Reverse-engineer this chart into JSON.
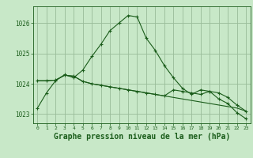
{
  "bg_color": "#c8e8c8",
  "grid_color": "#99bb99",
  "line_color": "#1a5c1a",
  "marker_color": "#1a5c1a",
  "xlabel": "Graphe pression niveau de la mer (hPa)",
  "xlabel_fontsize": 7,
  "yticks": [
    1023,
    1024,
    1025,
    1026
  ],
  "ytick_labels": [
    "1023",
    "1024",
    "1025",
    "1026"
  ],
  "xlim": [
    -0.5,
    23.5
  ],
  "ylim": [
    1022.7,
    1026.55
  ],
  "series": [
    [
      1023.2,
      1023.7,
      1024.1,
      1024.3,
      1024.2,
      1024.45,
      1024.9,
      1025.3,
      1025.75,
      1026.0,
      1026.25,
      1026.2,
      1025.5,
      1025.1,
      1024.6,
      1024.2,
      1023.85,
      1023.65,
      1023.8,
      1023.75,
      1023.5,
      1023.35,
      1023.05,
      1022.85
    ],
    [
      1024.1,
      1024.1,
      1024.12,
      1024.28,
      1024.25,
      1024.08,
      1024.0,
      1023.95,
      1023.9,
      1023.85,
      1023.8,
      1023.75,
      1023.7,
      1023.65,
      1023.6,
      1023.55,
      1023.5,
      1023.45,
      1023.4,
      1023.35,
      1023.3,
      1023.25,
      1023.2,
      1023.1
    ],
    [
      1024.1,
      1024.1,
      1024.12,
      1024.28,
      1024.25,
      1024.08,
      1024.0,
      1023.95,
      1023.9,
      1023.85,
      1023.8,
      1023.75,
      1023.7,
      1023.65,
      1023.6,
      1023.8,
      1023.75,
      1023.7,
      1023.65,
      1023.75,
      1023.7,
      1023.55,
      1023.3,
      1023.1
    ]
  ],
  "markers": [
    true,
    false,
    true
  ],
  "fig_width": 3.2,
  "fig_height": 2.0,
  "dpi": 100
}
